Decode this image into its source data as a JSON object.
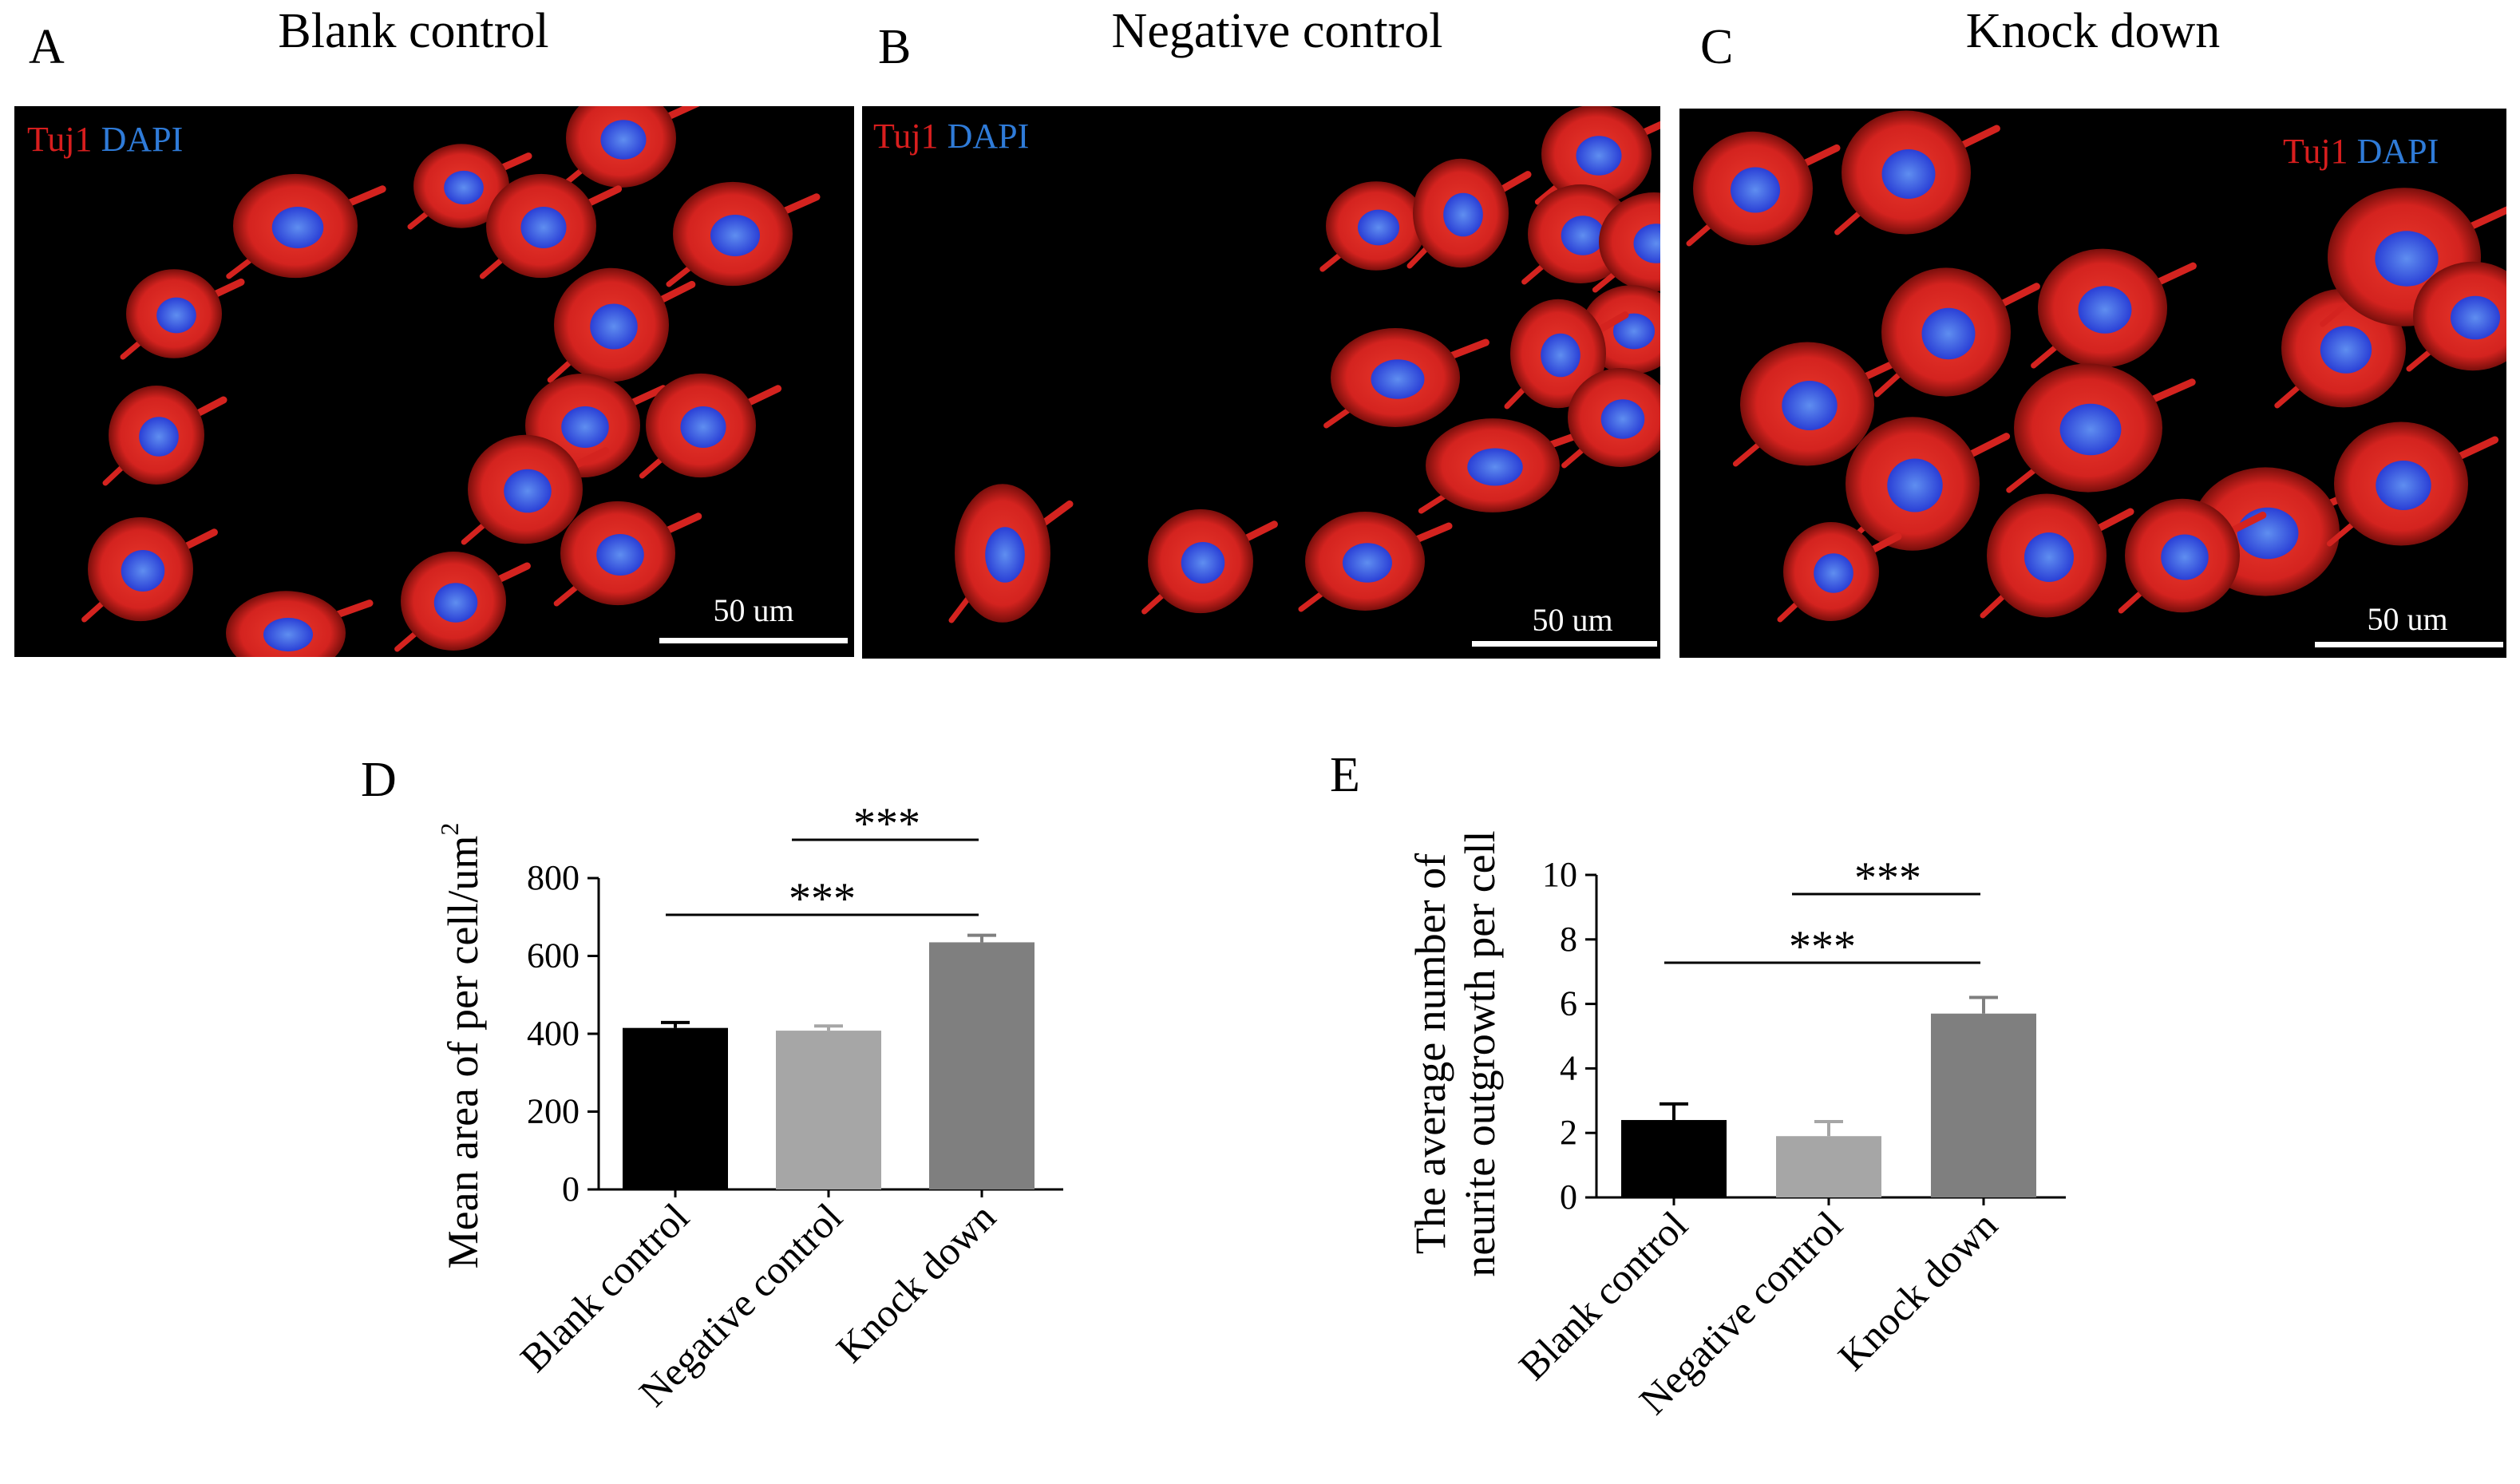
{
  "panels": [
    {
      "letter": "A",
      "title": "Blank control",
      "stain_red": "Tuj1",
      "stain_blue": "DAPI",
      "scale": "50 um"
    },
    {
      "letter": "B",
      "title": "Negative control",
      "stain_red": "Tuj1",
      "stain_blue": "DAPI",
      "scale": "50 um"
    },
    {
      "letter": "C",
      "title": "Knock down",
      "stain_red": "Tuj1",
      "stain_blue": "DAPI",
      "scale": "50 um"
    }
  ],
  "colors": {
    "cytoplasm": "#d4231f",
    "nucleus": "#2a3fd6",
    "background": "#000000",
    "bar_blank": "#000000",
    "bar_negative": "#a6a6a6",
    "bar_knock": "#7f7f7f"
  },
  "chart_data": [
    {
      "panel": "D",
      "type": "bar",
      "categories": [
        "Blank control",
        "Negative control",
        "Knock down"
      ],
      "values": [
        415,
        408,
        635
      ],
      "errors": [
        14,
        12,
        18
      ],
      "ylabel_main": "Mean area of per cell/um",
      "ylabel_sup": "2",
      "ylim": [
        0,
        800
      ],
      "yticks": [
        "0",
        "200",
        "400",
        "600",
        "800"
      ],
      "significance": [
        {
          "from": 0,
          "to": 2,
          "label": "***"
        },
        {
          "from": 1,
          "to": 2,
          "label": "***"
        }
      ]
    },
    {
      "panel": "E",
      "type": "bar",
      "categories": [
        "Blank control",
        "Negative control",
        "Knock down"
      ],
      "values": [
        2.4,
        1.9,
        5.7
      ],
      "errors": [
        0.5,
        0.45,
        0.5
      ],
      "ylabel_line1": "The average number of",
      "ylabel_line2": "neurite outgrowth per cell",
      "ylim": [
        0,
        10
      ],
      "yticks": [
        "0",
        "2",
        "4",
        "6",
        "8",
        "10"
      ],
      "significance": [
        {
          "from": 0,
          "to": 2,
          "label": "***"
        },
        {
          "from": 1,
          "to": 2,
          "label": "***"
        }
      ]
    }
  ]
}
